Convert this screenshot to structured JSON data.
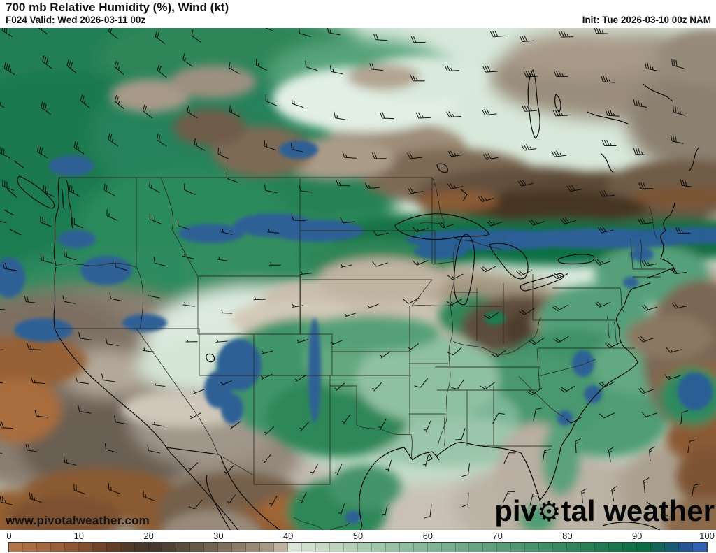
{
  "header": {
    "title": "700 mb Relative Humidity (%), Wind (kt)",
    "valid": "F024 Valid: Wed 2026-03-11 00z",
    "init": "Init: Tue 2026-03-10 00z NAM"
  },
  "watermarks": {
    "url": "www.pivotalweather.com",
    "brand_prefix": "piv",
    "brand_suffix": "tal weather",
    "brand_full": "pivotal weather"
  },
  "icons": {
    "gear": "⚙"
  },
  "colorbar": {
    "unit": "%",
    "min": 0,
    "max": 100,
    "segment_step": 2,
    "ticks": [
      "0",
      "10",
      "20",
      "30",
      "40",
      "50",
      "60",
      "70",
      "80",
      "90",
      "100"
    ],
    "segment_colors": [
      "#b0764a",
      "#a86f44",
      "#a0683f",
      "#975f3a",
      "#8d5735",
      "#804e30",
      "#71452b",
      "#624028",
      "#523a28",
      "#47382b",
      "#45392e",
      "#4d4334",
      "#594e3d",
      "#655947",
      "#716451",
      "#7e705c",
      "#8b7d68",
      "#988a75",
      "#a79a84",
      "#beb3a0",
      "#dce6d8",
      "#d2e0cf",
      "#c8dac6",
      "#bed4bd",
      "#b4cfb6",
      "#a8cbb0",
      "#a0c6aa",
      "#98c1a5",
      "#90bd9f",
      "#89b89a",
      "#81b394",
      "#79ae8e",
      "#71a989",
      "#69a583",
      "#61a07e",
      "#5a9b78",
      "#529672",
      "#4a916d",
      "#428d67",
      "#3a8862",
      "#33835c",
      "#2b7e56",
      "#237951",
      "#1b754b",
      "#137046",
      "#0d6c41",
      "#136457",
      "#1c5c72",
      "#26558f",
      "#3161b0"
    ]
  },
  "chart_data": {
    "type": "heatmap",
    "title": "700 mb Relative Humidity (%), Wind (kt)",
    "model": "NAM",
    "forecast_hour": "F024",
    "valid_time": "Wed 2026-03-11 00z",
    "init_time": "Tue 2026-03-10 00z",
    "variable": "700 mb relative humidity (percent)",
    "overlay": "wind barbs (kt)",
    "region": "CONUS",
    "colorbar_ticks": [
      0,
      10,
      20,
      30,
      40,
      50,
      60,
      70,
      80,
      90,
      100
    ],
    "colorbar_range": [
      0,
      100
    ],
    "legend_position": "bottom"
  }
}
